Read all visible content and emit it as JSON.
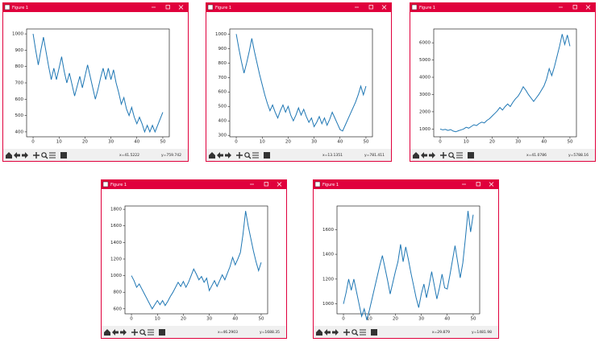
{
  "windows": [
    {
      "title": "Figure 1",
      "status_x": "x=41.5222",
      "status_y": "y=759.742"
    },
    {
      "title": "Figure 1",
      "status_x": "x=13.1351",
      "status_y": "y=781.411"
    },
    {
      "title": "Figure 1",
      "status_x": "x=41.0786",
      "status_y": "y=5788.16"
    },
    {
      "title": "Figure 1",
      "status_x": "x=46.2903",
      "status_y": "y=1688.35"
    },
    {
      "title": "Figure 1",
      "status_x": "x=29.879",
      "status_y": "y=1481.98"
    }
  ],
  "chart_data": [
    {
      "type": "line",
      "color": "#1f77b4",
      "xlim": [
        -2.5,
        52.5
      ],
      "ylim": [
        370,
        1030
      ],
      "xticks": [
        0,
        10,
        20,
        30,
        40,
        50
      ],
      "yticks": [
        400,
        500,
        600,
        700,
        800,
        900,
        1000
      ],
      "x": [
        0,
        1,
        2,
        3,
        4,
        5,
        6,
        7,
        8,
        9,
        10,
        11,
        12,
        13,
        14,
        15,
        16,
        17,
        18,
        19,
        20,
        21,
        22,
        23,
        24,
        25,
        26,
        27,
        28,
        29,
        30,
        31,
        32,
        33,
        34,
        35,
        36,
        37,
        38,
        39,
        40,
        41,
        42,
        43,
        44,
        45,
        46,
        47,
        48,
        49,
        50
      ],
      "values": [
        1000,
        900,
        810,
        900,
        980,
        890,
        800,
        720,
        790,
        720,
        790,
        860,
        770,
        700,
        760,
        690,
        620,
        680,
        740,
        670,
        740,
        810,
        740,
        670,
        600,
        660,
        730,
        790,
        720,
        790,
        720,
        780,
        700,
        640,
        570,
        610,
        540,
        500,
        550,
        490,
        450,
        490,
        450,
        400,
        440,
        400,
        440,
        400,
        440,
        480,
        520
      ]
    },
    {
      "type": "line",
      "color": "#1f77b4",
      "xlim": [
        -2.5,
        52.5
      ],
      "ylim": [
        290,
        1035
      ],
      "xticks": [
        0,
        10,
        20,
        30,
        40,
        50
      ],
      "yticks": [
        300,
        400,
        500,
        600,
        700,
        800,
        900,
        1000
      ],
      "x": [
        0,
        1,
        2,
        3,
        4,
        5,
        6,
        7,
        8,
        9,
        10,
        11,
        12,
        13,
        14,
        15,
        16,
        17,
        18,
        19,
        20,
        21,
        22,
        23,
        24,
        25,
        26,
        27,
        28,
        29,
        30,
        31,
        32,
        33,
        34,
        35,
        36,
        37,
        38,
        39,
        40,
        41,
        42,
        43,
        44,
        45,
        46,
        47,
        48,
        49,
        50
      ],
      "values": [
        1000,
        900,
        810,
        730,
        800,
        880,
        970,
        880,
        800,
        720,
        650,
        580,
        520,
        470,
        510,
        460,
        420,
        470,
        510,
        460,
        500,
        440,
        400,
        440,
        490,
        440,
        480,
        430,
        390,
        420,
        360,
        390,
        430,
        380,
        420,
        370,
        410,
        460,
        420,
        380,
        340,
        330,
        370,
        410,
        450,
        490,
        530,
        580,
        640,
        580,
        640
      ]
    },
    {
      "type": "line",
      "color": "#1f77b4",
      "xlim": [
        -2.5,
        52.5
      ],
      "ylim": [
        550,
        6800
      ],
      "xticks": [
        0,
        10,
        20,
        30,
        40,
        50
      ],
      "yticks": [
        1000,
        2000,
        3000,
        4000,
        5000,
        6000
      ],
      "x": [
        0,
        1,
        2,
        3,
        4,
        5,
        6,
        7,
        8,
        9,
        10,
        11,
        12,
        13,
        14,
        15,
        16,
        17,
        18,
        19,
        20,
        21,
        22,
        23,
        24,
        25,
        26,
        27,
        28,
        29,
        30,
        31,
        32,
        33,
        34,
        35,
        36,
        37,
        38,
        39,
        40,
        41,
        42,
        43,
        44,
        45,
        46,
        47,
        48,
        49,
        50
      ],
      "values": [
        1000,
        950,
        980,
        920,
        970,
        880,
        840,
        900,
        950,
        1000,
        1100,
        1050,
        1150,
        1250,
        1200,
        1320,
        1400,
        1350,
        1500,
        1600,
        1750,
        1900,
        2050,
        2250,
        2100,
        2300,
        2450,
        2300,
        2550,
        2750,
        2900,
        3150,
        3450,
        3250,
        3000,
        2800,
        2600,
        2800,
        3000,
        3250,
        3500,
        3900,
        4500,
        4100,
        4600,
        5200,
        5800,
        6500,
        5900,
        6450,
        5800
      ]
    },
    {
      "type": "line",
      "color": "#1f77b4",
      "xlim": [
        -2.5,
        52.5
      ],
      "ylim": [
        540,
        1840
      ],
      "xticks": [
        0,
        10,
        20,
        30,
        40,
        50
      ],
      "yticks": [
        600,
        800,
        1000,
        1200,
        1400,
        1600,
        1800
      ],
      "x": [
        0,
        1,
        2,
        3,
        4,
        5,
        6,
        7,
        8,
        9,
        10,
        11,
        12,
        13,
        14,
        15,
        16,
        17,
        18,
        19,
        20,
        21,
        22,
        23,
        24,
        25,
        26,
        27,
        28,
        29,
        30,
        31,
        32,
        33,
        34,
        35,
        36,
        37,
        38,
        39,
        40,
        41,
        42,
        43,
        44,
        45,
        46,
        47,
        48,
        49,
        50
      ],
      "values": [
        1000,
        940,
        860,
        900,
        840,
        780,
        720,
        660,
        600,
        650,
        700,
        650,
        700,
        640,
        690,
        750,
        800,
        860,
        920,
        870,
        930,
        860,
        920,
        1000,
        1080,
        1020,
        950,
        990,
        920,
        970,
        820,
        880,
        940,
        870,
        940,
        1010,
        950,
        1030,
        1110,
        1220,
        1130,
        1200,
        1280,
        1500,
        1780,
        1600,
        1450,
        1300,
        1170,
        1060,
        1160
      ]
    },
    {
      "type": "line",
      "color": "#1f77b4",
      "xlim": [
        -2.5,
        52.5
      ],
      "ylim": [
        920,
        1790
      ],
      "xticks": [
        0,
        10,
        20,
        30,
        40,
        50
      ],
      "yticks": [
        1000,
        1200,
        1400,
        1600
      ],
      "x": [
        0,
        1,
        2,
        3,
        4,
        5,
        6,
        7,
        8,
        9,
        10,
        11,
        12,
        13,
        14,
        15,
        16,
        17,
        18,
        19,
        20,
        21,
        22,
        23,
        24,
        25,
        26,
        27,
        28,
        29,
        30,
        31,
        32,
        33,
        34,
        35,
        36,
        37,
        38,
        39,
        40,
        41,
        42,
        43,
        44,
        45,
        46,
        47,
        48,
        49,
        50
      ],
      "values": [
        1000,
        1090,
        1200,
        1110,
        1200,
        1100,
        1000,
        900,
        960,
        870,
        950,
        1040,
        1130,
        1220,
        1310,
        1390,
        1290,
        1190,
        1080,
        1170,
        1260,
        1340,
        1480,
        1340,
        1460,
        1360,
        1250,
        1150,
        1050,
        970,
        1080,
        1160,
        1050,
        1150,
        1260,
        1150,
        1040,
        1130,
        1240,
        1130,
        1120,
        1230,
        1350,
        1470,
        1340,
        1210,
        1330,
        1530,
        1750,
        1580,
        1720
      ]
    }
  ]
}
